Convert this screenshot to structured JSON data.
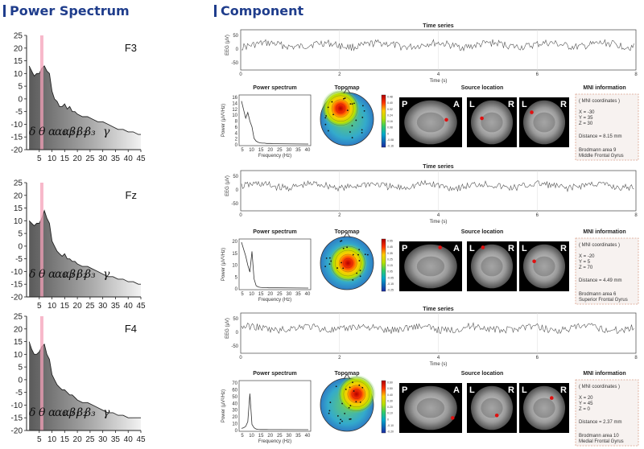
{
  "sections": {
    "power_spectrum_title": "Power Spectrum",
    "component_title": "Component"
  },
  "channels": [
    {
      "label": "F3"
    },
    {
      "label": "Fz"
    },
    {
      "label": "F4"
    }
  ],
  "band_labels": [
    "δ",
    "θ",
    "α",
    "α₁",
    "α₂",
    "β₁",
    "β₂",
    "β₃",
    "γ"
  ],
  "chart_data": [
    {
      "type": "area",
      "channel": "F3",
      "x": [
        1,
        2,
        3,
        4,
        5,
        6,
        7,
        8,
        9,
        10,
        11,
        12,
        13,
        14,
        15,
        16,
        17,
        18,
        19,
        20,
        22,
        24,
        26,
        28,
        30,
        32,
        34,
        36,
        38,
        40,
        42,
        44,
        45
      ],
      "y": [
        13,
        11,
        9,
        10,
        10,
        12,
        13,
        11,
        10,
        3,
        0,
        -1,
        -3,
        -3,
        -2,
        -4,
        -3,
        -5,
        -5,
        -6,
        -7,
        -7,
        -8,
        -9,
        -9,
        -10,
        -11,
        -12,
        -12,
        -13,
        -13,
        -14,
        -14
      ],
      "xlim": [
        0,
        45
      ],
      "ylim": [
        -20,
        25
      ],
      "xticks": [
        5,
        10,
        15,
        20,
        25,
        30,
        35,
        40,
        45
      ],
      "yticks": [
        25,
        20,
        15,
        10,
        5,
        0,
        -5,
        -10,
        -15,
        -20
      ],
      "highlight_x": 6
    },
    {
      "type": "area",
      "channel": "Fz",
      "x": [
        1,
        2,
        3,
        4,
        5,
        6,
        7,
        8,
        9,
        10,
        11,
        12,
        13,
        14,
        15,
        16,
        17,
        18,
        19,
        20,
        22,
        24,
        26,
        28,
        30,
        32,
        34,
        36,
        38,
        40,
        42,
        44,
        45
      ],
      "y": [
        10,
        9,
        8,
        9,
        9,
        11,
        14,
        11,
        9,
        2,
        0,
        -2,
        -3,
        -4,
        -3,
        -5,
        -5,
        -6,
        -6,
        -7,
        -8,
        -8,
        -9,
        -10,
        -11,
        -12,
        -12,
        -13,
        -13,
        -14,
        -14,
        -15,
        -15
      ],
      "xlim": [
        0,
        45
      ],
      "ylim": [
        -20,
        25
      ],
      "xticks": [
        5,
        10,
        15,
        20,
        25,
        30,
        35,
        40,
        45
      ],
      "yticks": [
        25,
        20,
        15,
        10,
        5,
        0,
        -5,
        -10,
        -15,
        -20
      ],
      "highlight_x": 6
    },
    {
      "type": "area",
      "channel": "F4",
      "x": [
        1,
        2,
        3,
        4,
        5,
        6,
        7,
        8,
        9,
        10,
        11,
        12,
        13,
        14,
        15,
        16,
        17,
        18,
        19,
        20,
        22,
        24,
        26,
        28,
        30,
        32,
        34,
        36,
        38,
        40,
        42,
        44,
        45
      ],
      "y": [
        15,
        12,
        10,
        10,
        11,
        13,
        14,
        10,
        8,
        2,
        0,
        -2,
        -3,
        -4,
        -4,
        -5,
        -6,
        -6,
        -7,
        -8,
        -9,
        -9,
        -10,
        -11,
        -12,
        -13,
        -13,
        -14,
        -14,
        -15,
        -15,
        -15,
        -15
      ],
      "xlim": [
        0,
        45
      ],
      "ylim": [
        -20,
        25
      ],
      "xticks": [
        5,
        10,
        15,
        20,
        25,
        30,
        35,
        40,
        45
      ],
      "yticks": [
        25,
        20,
        15,
        10,
        5,
        0,
        -5,
        -10,
        -15,
        -20
      ],
      "highlight_x": 6
    }
  ],
  "time_series": {
    "title": "Time series",
    "ylabel": "EEG (µV)",
    "xlabel": "Time (s)",
    "yticks": [
      "50",
      "0",
      "-50"
    ],
    "xticks": [
      "0",
      "2",
      "4",
      "6",
      "8"
    ]
  },
  "components": [
    {
      "ps_title": "Power spectrum",
      "ps_ylabel": "Power (µV²/Hz)",
      "ps_xlabel": "Frequency (Hz)",
      "ps_yticks": [
        "16",
        "14",
        "12",
        "10",
        "8",
        "6",
        "4",
        "2",
        "0"
      ],
      "ps_xticks": [
        "5",
        "10",
        "15",
        "20",
        "25",
        "30",
        "35",
        "40"
      ],
      "ps_ymax": 16,
      "ps_y": [
        15,
        12,
        9,
        11,
        8,
        6,
        2,
        1,
        0.6,
        0.4,
        0.3,
        0.3,
        0.2,
        0.2,
        0.2,
        0.1,
        0.1,
        0.1
      ],
      "topo_title": "Topomap",
      "topo_hot": [
        0.38,
        0.3
      ],
      "colorbar_ticks": [
        "0.48",
        "0.40",
        "0.32",
        "0.24",
        "0.16",
        "0.08",
        "0",
        "-0.08",
        "-0.16"
      ],
      "src_title": "Source location",
      "mni_title": "MNI information",
      "mni_header": "( MNI coordinates )",
      "mni_x": "X = -30",
      "mni_y": "Y = 35",
      "mni_z": "Z = 30",
      "mni_distance": "Distance = 8.15 mm",
      "mni_area": "Brodmann area 9",
      "mni_region": "Middle Frontal Gyrus",
      "src_pos": [
        [
          0.75,
          0.45
        ],
        [
          0.3,
          0.42
        ],
        [
          0.25,
          0.3
        ]
      ]
    },
    {
      "ps_title": "Power spectrum",
      "ps_ylabel": "Power (µV²/Hz)",
      "ps_xlabel": "Frequency (Hz)",
      "ps_yticks": [
        "20",
        "15",
        "10",
        "5",
        "0"
      ],
      "ps_xticks": [
        "5",
        "10",
        "15",
        "20",
        "25",
        "30",
        "35",
        "40"
      ],
      "ps_ymax": 20,
      "ps_y": [
        20,
        17,
        14,
        10,
        7,
        16,
        4,
        1,
        0.5,
        0.3,
        0.2,
        0.2,
        0.2,
        0.1,
        0.1,
        0.1,
        0.1,
        0.1
      ],
      "topo_title": "Topomap",
      "topo_hot": [
        0.52,
        0.5
      ],
      "colorbar_ticks": [
        "0.55",
        "0.45",
        "0.35",
        "0.25",
        "0.15",
        "0.05",
        "-0.05",
        "-0.15",
        "-0.25"
      ],
      "src_title": "Source location",
      "mni_title": "MNI information",
      "mni_header": "( MNI coordinates )",
      "mni_x": "X = -20",
      "mni_y": "Y = 5",
      "mni_z": "Z = 70",
      "mni_distance": "Distance = 4.49 mm",
      "mni_area": "Brodmann area 6",
      "mni_region": "Superior Frontal Gyrus",
      "src_pos": [
        [
          0.65,
          0.12
        ],
        [
          0.32,
          0.12
        ],
        [
          0.3,
          0.4
        ]
      ]
    },
    {
      "ps_title": "Power spectrum",
      "ps_ylabel": "Power (µV²/Hz)",
      "ps_xlabel": "Frequency (Hz)",
      "ps_yticks": [
        "70",
        "60",
        "50",
        "40",
        "30",
        "20",
        "10",
        "0"
      ],
      "ps_xticks": [
        "5",
        "10",
        "15",
        "20",
        "25",
        "30",
        "35",
        "40"
      ],
      "ps_ymax": 70,
      "ps_y": [
        2,
        3,
        5,
        12,
        55,
        8,
        3,
        1,
        0.5,
        0.3,
        0.2,
        0.2,
        0.2,
        0.1,
        0.1,
        0.1,
        0.1,
        0.1
      ],
      "topo_title": "Topomap",
      "topo_hot": [
        0.68,
        0.3
      ],
      "colorbar_ticks": [
        "0.60",
        "0.50",
        "0.40",
        "0.30",
        "0.20",
        "0.10",
        "0",
        "-0.10",
        "-0.20"
      ],
      "src_title": "Source location",
      "mni_title": "MNI information",
      "mni_header": "( MNI coordinates )",
      "mni_x": "X = 20",
      "mni_y": "Y = 45",
      "mni_z": "Z = 0",
      "mni_distance": "Distance = 2.37 mm",
      "mni_area": "Brodmann area 10",
      "mni_region": "Medial Frontal Gyrus",
      "src_pos": [
        [
          0.85,
          0.7
        ],
        [
          0.6,
          0.65
        ],
        [
          0.65,
          0.3
        ]
      ]
    }
  ],
  "views": [
    "P",
    "A",
    "L",
    "R",
    "L",
    "R"
  ]
}
